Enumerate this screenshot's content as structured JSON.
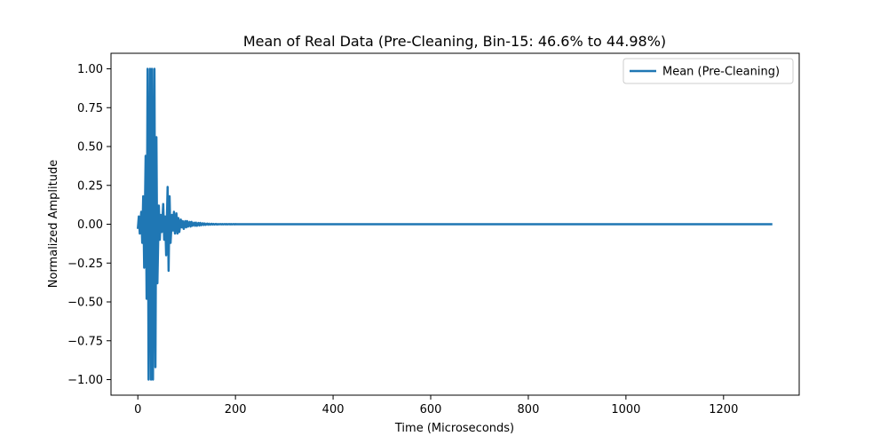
{
  "chart_data": {
    "type": "line",
    "title": "Mean of Real Data (Pre-Cleaning, Bin-15: 46.6% to 44.98%)",
    "xlabel": "Time (Microseconds)",
    "ylabel": "Normalized Amplitude",
    "xlim": [
      -55,
      1355
    ],
    "ylim": [
      -1.1,
      1.1
    ],
    "x_ticks": [
      0,
      200,
      400,
      600,
      800,
      1000,
      1200
    ],
    "x_tick_labels": [
      "0",
      "200",
      "400",
      "600",
      "800",
      "1000",
      "1200"
    ],
    "y_ticks": [
      1.0,
      0.75,
      0.5,
      0.25,
      0.0,
      -0.25,
      -0.5,
      -0.75,
      -1.0
    ],
    "y_tick_labels": [
      "1.00",
      "0.75",
      "0.50",
      "0.25",
      "0.00",
      "−0.25",
      "−0.50",
      "−0.75",
      "−1.00"
    ],
    "grid": false,
    "legend_position": "top-right",
    "series": [
      {
        "name": "Mean (Pre-Cleaning)",
        "color": "#1f77b4",
        "x": [
          0,
          2,
          4,
          7,
          9,
          11,
          13,
          16,
          18,
          20,
          22,
          25,
          27,
          29,
          31,
          34,
          36,
          38,
          40,
          43,
          45,
          47,
          49,
          52,
          54,
          56,
          58,
          61,
          63,
          65,
          67,
          70,
          72,
          74,
          76,
          79,
          81,
          83,
          85,
          88,
          90,
          92,
          94,
          97,
          99,
          101,
          103,
          106,
          108,
          110,
          112,
          115,
          117,
          119,
          121,
          124,
          126,
          128,
          130,
          133,
          135,
          137,
          139,
          142,
          144,
          146,
          148,
          151,
          153,
          155,
          157,
          160,
          162,
          164,
          166,
          169,
          171,
          173,
          175,
          178,
          180,
          182,
          184,
          187,
          189,
          191,
          193,
          196,
          198,
          200,
          202,
          205,
          207,
          209,
          211,
          214,
          216,
          218,
          220,
          223,
          225,
          227,
          229,
          232,
          234,
          236,
          238,
          241,
          243,
          245,
          247,
          250,
          252,
          254,
          256,
          259,
          261,
          263,
          265,
          268,
          270,
          272,
          274,
          277,
          279,
          281,
          283,
          286,
          288,
          290,
          292,
          295,
          297,
          299,
          301,
          304,
          306,
          308,
          310,
          313,
          315,
          317,
          319,
          322,
          324,
          326,
          328,
          331,
          333,
          335,
          337,
          340,
          342,
          344,
          346,
          349,
          351,
          353,
          355,
          358,
          360,
          1300
        ],
        "values": [
          -0.03,
          0.05,
          -0.06,
          0.08,
          -0.12,
          0.18,
          -0.28,
          0.44,
          -0.48,
          1.0,
          -1.0,
          1.0,
          -1.0,
          1.0,
          -1.0,
          1.0,
          -0.92,
          0.56,
          -0.38,
          0.12,
          -0.1,
          0.06,
          -0.05,
          0.13,
          -0.1,
          0.05,
          -0.2,
          0.24,
          -0.3,
          0.18,
          -0.12,
          0.06,
          -0.04,
          0.08,
          -0.06,
          0.07,
          -0.06,
          0.04,
          -0.05,
          0.03,
          -0.02,
          0.02,
          -0.03,
          0.02,
          -0.02,
          0.02,
          -0.015,
          0.015,
          -0.015,
          0.015,
          -0.01,
          0.01,
          -0.01,
          0.01,
          -0.01,
          0.008,
          -0.008,
          0.008,
          -0.006,
          0.006,
          -0.005,
          0.005,
          -0.004,
          0.004,
          -0.003,
          0.003,
          -0.003,
          0.003,
          -0.002,
          0.002,
          -0.002,
          0.002,
          -0.002,
          0.001,
          -0.001,
          0.001,
          -0.001,
          0.001,
          -0.001,
          0.001,
          -0.001,
          0.001,
          -0.001,
          0.001,
          -0.001,
          0.001,
          -0.001,
          0.001,
          -0.001,
          0.001,
          0,
          0,
          0,
          0,
          0,
          0,
          0,
          0,
          0,
          0,
          0,
          0,
          0,
          0,
          0,
          0,
          0,
          0,
          0,
          0,
          0,
          0,
          0,
          0,
          0,
          0,
          0,
          0,
          0,
          0,
          0,
          0,
          0,
          0,
          0,
          0,
          0,
          0,
          0,
          0,
          0,
          0,
          0,
          0,
          0,
          0,
          0,
          0,
          0,
          0,
          0,
          0,
          0,
          0,
          0,
          0,
          0,
          0,
          0,
          0,
          0,
          0,
          0,
          0,
          0,
          0,
          0,
          0,
          0,
          0,
          0,
          0
        ]
      }
    ]
  }
}
